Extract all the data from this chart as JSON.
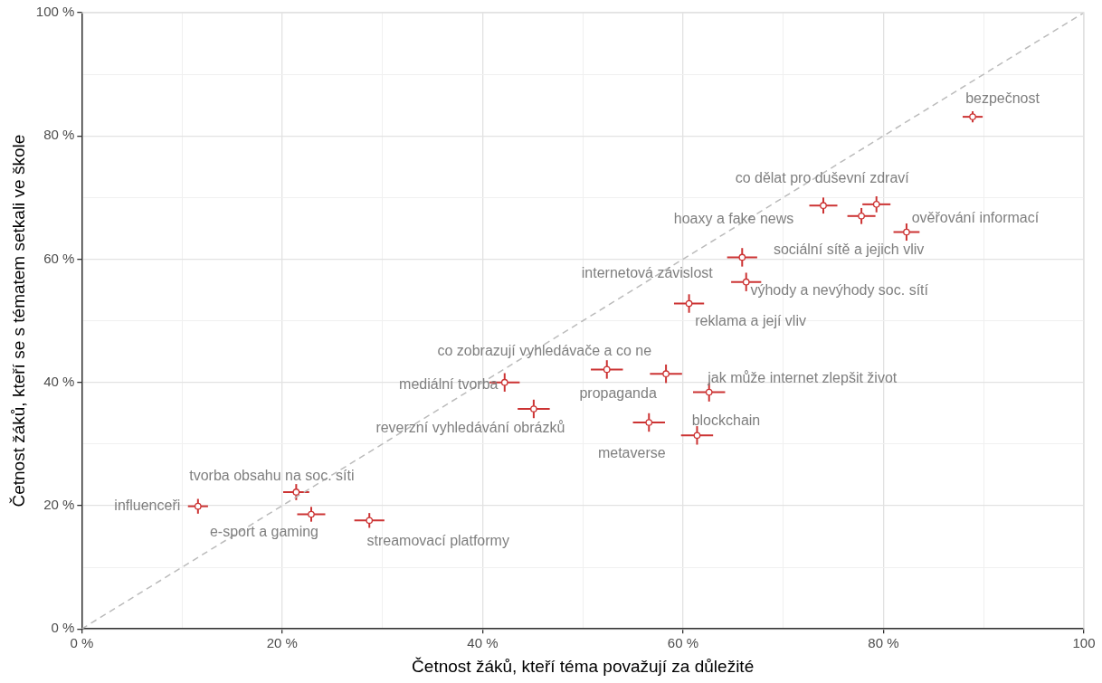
{
  "chart_data": {
    "type": "scatter",
    "xlabel": "Četnost žáků, kteří téma považují za důležité",
    "ylabel": "Četnost žáků, kteří se s tématem setkali ve škole",
    "marker": "circle",
    "grid": true,
    "legend": false,
    "xlim": [
      0,
      100
    ],
    "ylim": [
      0,
      100
    ],
    "xticks": [
      {
        "value": 0,
        "label": "0 %"
      },
      {
        "value": 10,
        "label": null
      },
      {
        "value": 20,
        "label": "20 %"
      },
      {
        "value": 30,
        "label": null
      },
      {
        "value": 40,
        "label": "40 %"
      },
      {
        "value": 50,
        "label": null
      },
      {
        "value": 60,
        "label": "60 %"
      },
      {
        "value": 70,
        "label": null
      },
      {
        "value": 80,
        "label": "80 %"
      },
      {
        "value": 90,
        "label": null
      },
      {
        "value": 100,
        "label": "100"
      }
    ],
    "yticks": [
      {
        "value": 0,
        "label": "0 %"
      },
      {
        "value": 10,
        "label": null
      },
      {
        "value": 20,
        "label": "20 %"
      },
      {
        "value": 30,
        "label": null
      },
      {
        "value": 40,
        "label": "40 %"
      },
      {
        "value": 50,
        "label": null
      },
      {
        "value": 60,
        "label": "60 %"
      },
      {
        "value": 70,
        "label": null
      },
      {
        "value": 80,
        "label": "80 %"
      },
      {
        "value": 90,
        "label": null
      },
      {
        "value": 100,
        "label": "100 %"
      }
    ],
    "series": [
      {
        "type": "scatter",
        "color": "#cc3333",
        "x": [
          11.6,
          21.4,
          22.9,
          28.7,
          42.2,
          45.1,
          52.4,
          58.3,
          62.6,
          56.6,
          61.4,
          60.6,
          65.9,
          66.3,
          74.0,
          77.8,
          79.3,
          82.3,
          88.9
        ],
        "values": [
          19.9,
          22.2,
          18.6,
          17.6,
          40.0,
          35.7,
          42.1,
          41.4,
          38.4,
          33.5,
          31.4,
          52.8,
          60.3,
          56.3,
          68.7,
          67.0,
          68.9,
          64.4,
          83.1
        ],
        "errors": [
          1.2,
          1.3,
          1.2,
          1.2,
          1.5,
          1.5,
          1.5,
          1.5,
          1.5,
          1.5,
          1.5,
          1.5,
          1.5,
          1.5,
          1.3,
          1.3,
          1.3,
          1.4,
          0.9
        ],
        "xerrors": [
          1.0,
          1.3,
          1.4,
          1.5,
          1.5,
          1.6,
          1.6,
          1.6,
          1.6,
          1.6,
          1.6,
          1.5,
          1.5,
          1.5,
          1.4,
          1.4,
          1.4,
          1.3,
          1.0
        ]
      },
      {
        "type": "line",
        "color": "#bbbbbb",
        "line_style": "dashed",
        "marker": "none",
        "x": [
          0,
          100
        ],
        "values": [
          0,
          100
        ]
      }
    ],
    "annotations": [
      {
        "text": "influenceři",
        "x": 11.6,
        "y": 19.9
      },
      {
        "text": "tvorba obsahu na soc. síti",
        "x": 21.4,
        "y": 22.2
      },
      {
        "text": "e-sport a gaming",
        "x": 22.9,
        "y": 18.6
      },
      {
        "text": "streamovací platformy",
        "x": 28.7,
        "y": 17.6
      },
      {
        "text": "mediální tvorba",
        "x": 42.2,
        "y": 40.0
      },
      {
        "text": "reverzní vyhledávání obrázků",
        "x": 45.1,
        "y": 35.7
      },
      {
        "text": "co zobrazují vyhledávače a co ne",
        "x": 52.4,
        "y": 42.1
      },
      {
        "text": "propaganda",
        "x": 58.3,
        "y": 41.4
      },
      {
        "text": "jak může internet zlepšit život",
        "x": 62.6,
        "y": 38.4
      },
      {
        "text": "metaverse",
        "x": 56.6,
        "y": 33.5
      },
      {
        "text": "blockchain",
        "x": 61.4,
        "y": 31.4
      },
      {
        "text": "reklama a její vliv",
        "x": 60.6,
        "y": 52.8
      },
      {
        "text": "internetová závislost",
        "x": 65.9,
        "y": 60.3
      },
      {
        "text": "výhody a nevýhody soc. sítí",
        "x": 66.3,
        "y": 56.3
      },
      {
        "text": "hoaxy a fake news",
        "x": 74.0,
        "y": 68.7
      },
      {
        "text": "sociální sítě a jejich vliv",
        "x": 77.8,
        "y": 67.0
      },
      {
        "text": "co dělat pro duševní zdraví",
        "x": 79.3,
        "y": 68.9
      },
      {
        "text": "ověřování informací",
        "x": 82.3,
        "y": 64.4
      },
      {
        "text": "bezpečnost",
        "x": 88.9,
        "y": 83.1
      }
    ]
  }
}
